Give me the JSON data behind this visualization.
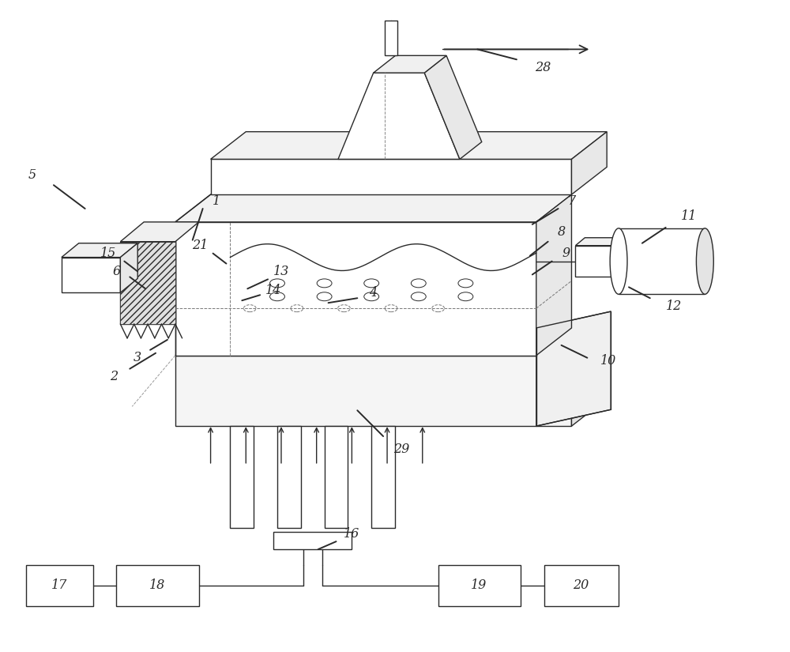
{
  "bg_color": "#ffffff",
  "line_color": "#2a2a2a",
  "lw": 1.0,
  "tlw": 0.7,
  "fig_width": 10.0,
  "fig_height": 8.25
}
